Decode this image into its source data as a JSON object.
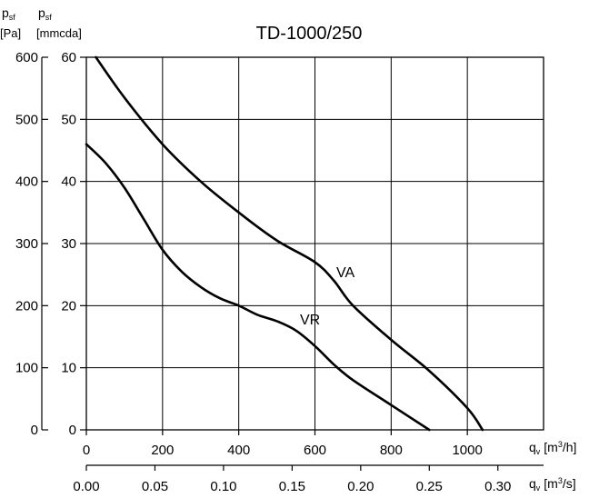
{
  "chart_data": {
    "type": "line",
    "title": "TD-1000/250",
    "y_axis": {
      "label_pa_symbol": "p",
      "label_pa_sub": "sf",
      "label_pa_unit": "[Pa]",
      "label_mm_symbol": "p",
      "label_mm_sub": "sf",
      "label_mm_unit": "[mmcda]",
      "range_pa": [
        0,
        600
      ],
      "ticks_pa": [
        "0",
        "100",
        "200",
        "300",
        "400",
        "500",
        "600"
      ],
      "range_mm": [
        0,
        60
      ],
      "ticks_mm": [
        "0",
        "10",
        "20",
        "30",
        "40",
        "50",
        "60"
      ]
    },
    "x_axis": {
      "label_symbol": "q",
      "label_sub": "v",
      "label_unit_m3h_pre": "[m",
      "label_unit_m3h_sup": "3",
      "label_unit_m3h_post": "/h]",
      "range_m3h": [
        0,
        1200
      ],
      "ticks_m3h": [
        "0",
        "200",
        "400",
        "600",
        "800",
        "1000"
      ],
      "label_unit_m3s_pre": "[m",
      "label_unit_m3s_sup": "3",
      "label_unit_m3s_post": "/s]",
      "range_m3s": [
        0,
        0.3333
      ],
      "ticks_m3s": [
        "0.00",
        "0.05",
        "0.10",
        "0.15",
        "0.20",
        "0.25",
        "0.30"
      ]
    },
    "grid": true,
    "series": [
      {
        "name": "VA",
        "x": [
          25,
          100,
          200,
          300,
          400,
          500,
          600,
          650,
          700,
          800,
          900,
          1000,
          1040
        ],
        "y": [
          600,
          535,
          460,
          400,
          350,
          305,
          270,
          240,
          200,
          145,
          95,
          35,
          0
        ]
      },
      {
        "name": "VR",
        "x": [
          0,
          50,
          100,
          150,
          200,
          250,
          300,
          350,
          400,
          450,
          500,
          550,
          600,
          650,
          700,
          800,
          900
        ],
        "y": [
          460,
          430,
          390,
          340,
          290,
          255,
          230,
          212,
          200,
          185,
          175,
          160,
          135,
          105,
          80,
          40,
          0
        ]
      }
    ]
  }
}
